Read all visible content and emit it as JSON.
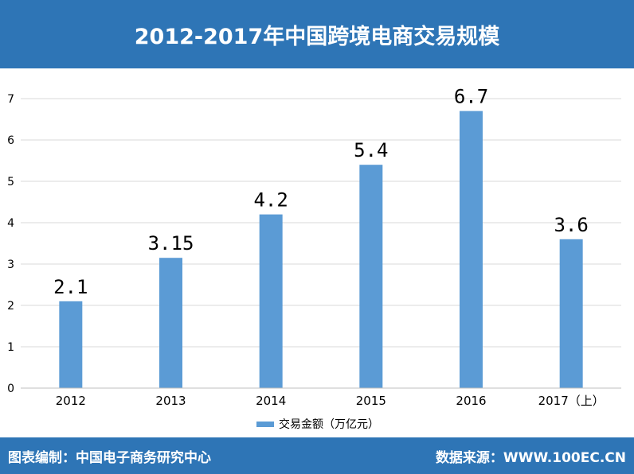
{
  "header": {
    "title": "2012-2017年中国跨境电商交易规模"
  },
  "footer": {
    "source_left": "图表编制：中国电子商务研究中心",
    "source_right": "数据来源：WWW.100EC.CN"
  },
  "colors": {
    "header_bg": "#2e75b6",
    "bar": "#5b9bd5"
  },
  "chart_data": {
    "type": "bar",
    "categories": [
      "2012",
      "2013",
      "2014",
      "2015",
      "2016",
      "2017（上）"
    ],
    "series": [
      {
        "name": "交易金额（万亿元）",
        "values": [
          2.1,
          3.15,
          4.2,
          5.4,
          6.7,
          3.6
        ]
      }
    ],
    "data_labels": [
      "2.1",
      "3.15",
      "4.2",
      "5.4",
      "6.7",
      "3.6"
    ],
    "yticks": [
      "0",
      "1",
      "2",
      "3",
      "4",
      "5",
      "6",
      "7"
    ],
    "ylim": [
      0,
      7
    ],
    "grid": true,
    "legend_position": "bottom"
  }
}
